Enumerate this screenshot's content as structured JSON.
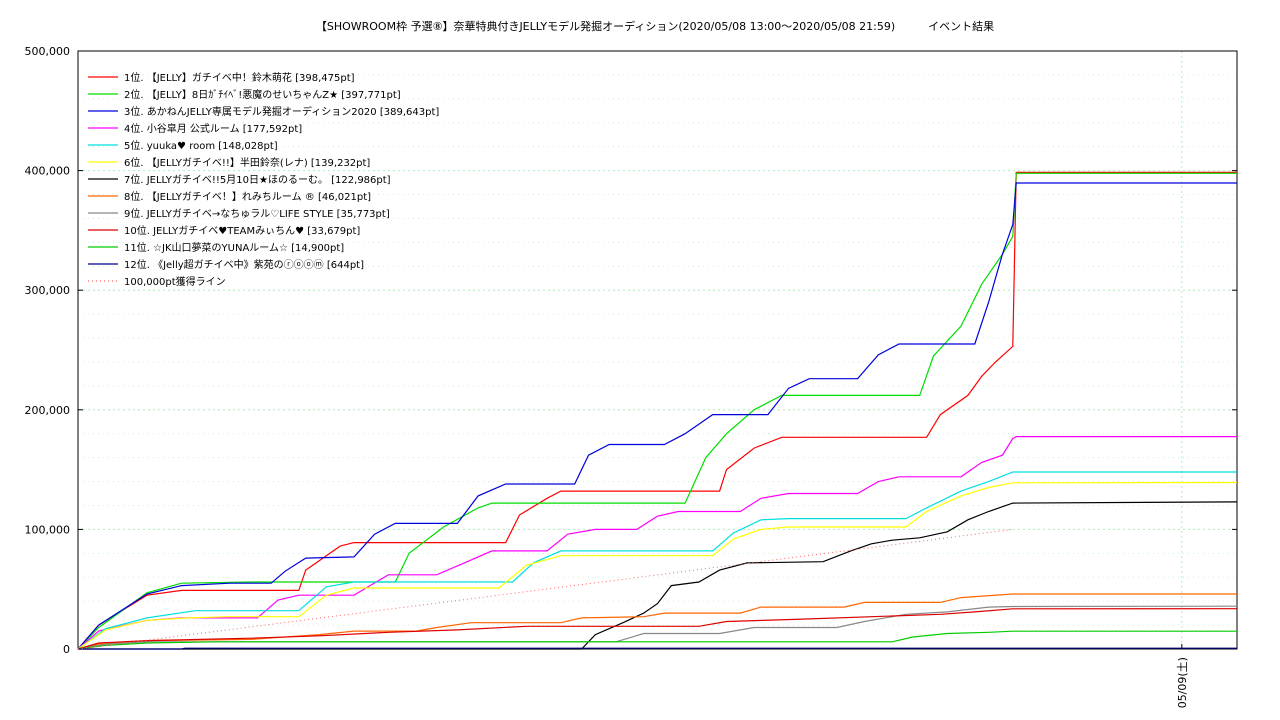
{
  "chart_data": {
    "type": "line",
    "title": "【SHOWROOM枠 予選⑧】奈華特典付きJELLYモデル発掘オーディション(2020/05/08 13:00～2020/05/08 21:59)　　　イベント結果",
    "xlabel": "",
    "ylabel": "",
    "x_unit": "hours since 2020/05/08 13:00",
    "xlim": [
      0,
      16.8
    ],
    "ylim": [
      0,
      500000
    ],
    "y_ticks": [
      "0",
      "100,000",
      "200,000",
      "300,000",
      "400,000",
      "500,000"
    ],
    "y_tick_values": [
      0,
      100000,
      200000,
      300000,
      400000,
      500000
    ],
    "x_ticks": [
      {
        "label": "05/09(土)",
        "value": 16.0
      }
    ],
    "grid": true,
    "legend_position": "top-left",
    "series": [
      {
        "name": "1位. 【JELLY】ガチイベ中！鈴木萌花 [398,475pt]",
        "color": "#ff0000",
        "points": [
          [
            0,
            0
          ],
          [
            0.3,
            20000
          ],
          [
            1,
            45000
          ],
          [
            1.5,
            49000
          ],
          [
            3.2,
            49000
          ],
          [
            3.3,
            66000
          ],
          [
            3.8,
            86000
          ],
          [
            4,
            89000
          ],
          [
            6.2,
            89000
          ],
          [
            6.4,
            112000
          ],
          [
            6.8,
            126000
          ],
          [
            7,
            132000
          ],
          [
            9.3,
            132000
          ],
          [
            9.4,
            150000
          ],
          [
            9.8,
            168000
          ],
          [
            10.2,
            177000
          ],
          [
            12.3,
            177000
          ],
          [
            12.5,
            196000
          ],
          [
            12.9,
            212000
          ],
          [
            13.1,
            228000
          ],
          [
            13.3,
            240000
          ],
          [
            13.55,
            253000
          ],
          [
            13.6,
            398475
          ],
          [
            16.8,
            398475
          ]
        ]
      },
      {
        "name": "2位. 【JELLY】8日ｶﾞﾁｲﾍﾞ!悪魔のせいちゃんZ★ [397,771pt]",
        "color": "#00dd00",
        "points": [
          [
            0,
            0
          ],
          [
            0.3,
            18000
          ],
          [
            1,
            47000
          ],
          [
            1.5,
            55000
          ],
          [
            2.5,
            56000
          ],
          [
            4,
            56000
          ],
          [
            4.6,
            56000
          ],
          [
            4.8,
            80000
          ],
          [
            5.3,
            102000
          ],
          [
            5.8,
            118000
          ],
          [
            6,
            122000
          ],
          [
            8.8,
            122000
          ],
          [
            9.1,
            160000
          ],
          [
            9.4,
            180000
          ],
          [
            9.8,
            200000
          ],
          [
            10.2,
            212000
          ],
          [
            12.2,
            212000
          ],
          [
            12.4,
            245000
          ],
          [
            12.8,
            270000
          ],
          [
            13.1,
            305000
          ],
          [
            13.4,
            330000
          ],
          [
            13.55,
            345000
          ],
          [
            13.6,
            397771
          ],
          [
            16.8,
            397771
          ]
        ]
      },
      {
        "name": "3位. あかねんJELLY専属モデル発掘オーディション2020 [389,643pt]",
        "color": "#0000dd",
        "points": [
          [
            0,
            0
          ],
          [
            0.3,
            20000
          ],
          [
            1,
            46000
          ],
          [
            1.5,
            53000
          ],
          [
            2.2,
            55000
          ],
          [
            2.8,
            55000
          ],
          [
            3,
            65000
          ],
          [
            3.3,
            76000
          ],
          [
            4,
            77000
          ],
          [
            4.3,
            96000
          ],
          [
            4.6,
            105000
          ],
          [
            5.5,
            105000
          ],
          [
            5.8,
            128000
          ],
          [
            6.2,
            138000
          ],
          [
            7.2,
            138000
          ],
          [
            7.4,
            162000
          ],
          [
            7.7,
            171000
          ],
          [
            8.5,
            171000
          ],
          [
            8.8,
            180000
          ],
          [
            9.2,
            196000
          ],
          [
            10,
            196000
          ],
          [
            10.3,
            218000
          ],
          [
            10.6,
            226000
          ],
          [
            11.3,
            226000
          ],
          [
            11.6,
            246000
          ],
          [
            11.9,
            255000
          ],
          [
            13,
            255000
          ],
          [
            13.2,
            290000
          ],
          [
            13.4,
            330000
          ],
          [
            13.55,
            355000
          ],
          [
            13.6,
            389643
          ],
          [
            16.8,
            389643
          ]
        ]
      },
      {
        "name": "4位. 小谷皐月 公式ルーム [177,592pt]",
        "color": "#ff00ff",
        "points": [
          [
            0,
            0
          ],
          [
            0.3,
            15000
          ],
          [
            1,
            24000
          ],
          [
            1.5,
            26000
          ],
          [
            2.6,
            26000
          ],
          [
            2.9,
            41000
          ],
          [
            3.2,
            45000
          ],
          [
            4,
            45000
          ],
          [
            4.5,
            62000
          ],
          [
            5.2,
            62000
          ],
          [
            5.6,
            72000
          ],
          [
            6,
            82000
          ],
          [
            6.8,
            82000
          ],
          [
            7.1,
            96000
          ],
          [
            7.5,
            100000
          ],
          [
            8.1,
            100000
          ],
          [
            8.4,
            111000
          ],
          [
            8.7,
            115000
          ],
          [
            9.6,
            115000
          ],
          [
            9.9,
            126000
          ],
          [
            10.3,
            130000
          ],
          [
            11.3,
            130000
          ],
          [
            11.6,
            140000
          ],
          [
            11.9,
            144000
          ],
          [
            12.8,
            144000
          ],
          [
            13.1,
            156000
          ],
          [
            13.4,
            162000
          ],
          [
            13.55,
            176000
          ],
          [
            13.6,
            177592
          ],
          [
            16.8,
            177592
          ]
        ]
      },
      {
        "name": "5位. yuuka♥ room [148,028pt]",
        "color": "#00e0e0",
        "points": [
          [
            0,
            0
          ],
          [
            0.4,
            17000
          ],
          [
            1,
            26000
          ],
          [
            1.7,
            32000
          ],
          [
            3.2,
            32000
          ],
          [
            3.6,
            52000
          ],
          [
            4,
            56000
          ],
          [
            6.3,
            56000
          ],
          [
            6.6,
            72000
          ],
          [
            7,
            82000
          ],
          [
            9.2,
            82000
          ],
          [
            9.5,
            97000
          ],
          [
            9.9,
            108000
          ],
          [
            10.3,
            109000
          ],
          [
            12,
            109000
          ],
          [
            12.3,
            118000
          ],
          [
            12.8,
            132000
          ],
          [
            13.2,
            140000
          ],
          [
            13.55,
            148000
          ],
          [
            16.8,
            148028
          ]
        ]
      },
      {
        "name": "6位. 【JELLYガチイベ!!】半田鈴奈(レナ) [139,232pt]",
        "color": "#ffff00",
        "points": [
          [
            0,
            0
          ],
          [
            0.4,
            16000
          ],
          [
            1,
            24000
          ],
          [
            1.6,
            26000
          ],
          [
            2.2,
            27000
          ],
          [
            3.2,
            27000
          ],
          [
            3.6,
            45000
          ],
          [
            4,
            51000
          ],
          [
            6.1,
            51000
          ],
          [
            6.5,
            70000
          ],
          [
            7,
            78000
          ],
          [
            9.2,
            78000
          ],
          [
            9.5,
            92000
          ],
          [
            9.9,
            100000
          ],
          [
            10.3,
            102000
          ],
          [
            12,
            102000
          ],
          [
            12.3,
            115000
          ],
          [
            12.8,
            128000
          ],
          [
            13.2,
            135000
          ],
          [
            13.55,
            139000
          ],
          [
            16.8,
            139232
          ]
        ]
      },
      {
        "name": "7位. JELLYガチイベ!!5月10日★ほのるーむ。 [122,986pt]",
        "color": "#000000",
        "points": [
          [
            0,
            0
          ],
          [
            7.3,
            0
          ],
          [
            7.5,
            12000
          ],
          [
            7.9,
            22000
          ],
          [
            8.2,
            30000
          ],
          [
            8.4,
            38000
          ],
          [
            8.6,
            53000
          ],
          [
            9,
            56000
          ],
          [
            9.3,
            66000
          ],
          [
            9.7,
            72000
          ],
          [
            10.8,
            73000
          ],
          [
            11.2,
            82000
          ],
          [
            11.5,
            88000
          ],
          [
            11.8,
            91000
          ],
          [
            12.2,
            93000
          ],
          [
            12.6,
            98000
          ],
          [
            12.9,
            108000
          ],
          [
            13.2,
            115000
          ],
          [
            13.55,
            122000
          ],
          [
            16.8,
            122986
          ]
        ]
      },
      {
        "name": "8位. 【JELLYガチイベ！】れみちルーム ® [46,021pt]",
        "color": "#ff6600",
        "points": [
          [
            0,
            0
          ],
          [
            0.3,
            4000
          ],
          [
            1,
            7000
          ],
          [
            2.5,
            8000
          ],
          [
            3.5,
            12000
          ],
          [
            4,
            15000
          ],
          [
            4.9,
            15000
          ],
          [
            5.2,
            18000
          ],
          [
            5.7,
            22000
          ],
          [
            7,
            22000
          ],
          [
            7.3,
            26000
          ],
          [
            8.2,
            27000
          ],
          [
            8.5,
            30000
          ],
          [
            9.6,
            30000
          ],
          [
            9.9,
            35000
          ],
          [
            11.1,
            35000
          ],
          [
            11.4,
            39000
          ],
          [
            12.5,
            39000
          ],
          [
            12.8,
            43000
          ],
          [
            13.55,
            46000
          ],
          [
            16.8,
            46021
          ]
        ]
      },
      {
        "name": "9位. JELLYガチイベ→なちゅラル♡LIFE STYLE [35,773pt]",
        "color": "#888888",
        "points": [
          [
            0,
            0
          ],
          [
            0.4,
            4000
          ],
          [
            1,
            6000
          ],
          [
            7.8,
            6000
          ],
          [
            8.2,
            13000
          ],
          [
            9.3,
            13000
          ],
          [
            9.8,
            18000
          ],
          [
            11,
            18000
          ],
          [
            11.4,
            23000
          ],
          [
            12,
            29000
          ],
          [
            12.6,
            31000
          ],
          [
            13.2,
            35000
          ],
          [
            13.55,
            35500
          ],
          [
            16.8,
            35773
          ]
        ]
      },
      {
        "name": "10位. JELLYガチイベ♥TEAMみぃちん♥ [33,679pt]",
        "color": "#dd0000",
        "points": [
          [
            0,
            0
          ],
          [
            0.3,
            5000
          ],
          [
            1,
            7000
          ],
          [
            2.5,
            9000
          ],
          [
            3.5,
            11000
          ],
          [
            4.5,
            14000
          ],
          [
            5.5,
            16000
          ],
          [
            6.5,
            19000
          ],
          [
            9,
            19000
          ],
          [
            9.4,
            23000
          ],
          [
            10.5,
            25000
          ],
          [
            12.5,
            29000
          ],
          [
            13,
            31000
          ],
          [
            13.55,
            33600
          ],
          [
            16.8,
            33679
          ]
        ]
      },
      {
        "name": "11位. ☆JK山口夢菜のYUNAルーム☆ [14,900pt]",
        "color": "#00cc00",
        "points": [
          [
            0,
            0
          ],
          [
            0.4,
            3000
          ],
          [
            1,
            5000
          ],
          [
            2,
            6000
          ],
          [
            11.8,
            6000
          ],
          [
            12.1,
            10000
          ],
          [
            12.6,
            13000
          ],
          [
            13.2,
            14000
          ],
          [
            13.55,
            14900
          ],
          [
            16.8,
            14900
          ]
        ]
      },
      {
        "name": "12位. 《Jelly超ガチイベ中》紫苑のⓡⓞⓞⓜ [644pt]",
        "color": "#000088",
        "points": [
          [
            0,
            0
          ],
          [
            1.5,
            0
          ],
          [
            1.55,
            644
          ],
          [
            16.8,
            644
          ]
        ]
      },
      {
        "name": "100,000pt獲得ライン",
        "color": "#ff6666",
        "dashed": true,
        "points": [
          [
            0,
            0
          ],
          [
            13.55,
            100000
          ]
        ]
      }
    ]
  }
}
